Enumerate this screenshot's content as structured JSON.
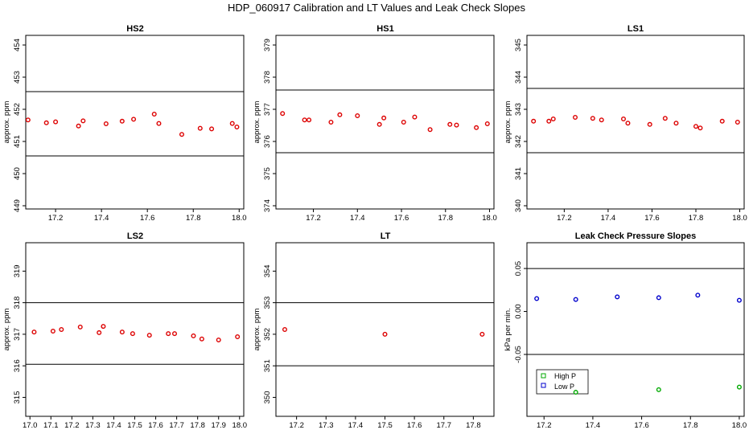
{
  "figure_title": "HDP_060917  Calibration and LT Values and Leak Check Slopes",
  "colors": {
    "points": "#dd0000",
    "high_p": "#00aa00",
    "low_p": "#0000cc",
    "line": "#000000"
  },
  "chart_data": [
    {
      "id": "hs2",
      "type": "scatter",
      "title": "HS2",
      "ylabel": "approx. ppm",
      "xlim": [
        17.07,
        18.02
      ],
      "ylim": [
        448.9,
        454.3
      ],
      "xticks": [
        17.2,
        17.4,
        17.6,
        17.8,
        18.0
      ],
      "xticklabels": [
        "17.2",
        "17.4",
        "17.6",
        "17.8",
        "18.0"
      ],
      "yticks": [
        449,
        450,
        451,
        452,
        453,
        454
      ],
      "yticklabels": [
        "449",
        "450",
        "451",
        "452",
        "453",
        "454"
      ],
      "hlines": [
        452.55,
        450.55
      ],
      "series": [
        {
          "name": "values",
          "color": "#dd0000",
          "x": [
            17.08,
            17.16,
            17.2,
            17.3,
            17.32,
            17.42,
            17.49,
            17.54,
            17.63,
            17.65,
            17.75,
            17.83,
            17.88,
            17.97,
            17.99
          ],
          "y": [
            451.67,
            451.58,
            451.61,
            451.48,
            451.64,
            451.55,
            451.63,
            451.69,
            451.85,
            451.56,
            451.22,
            451.41,
            451.39,
            451.56,
            451.45
          ]
        }
      ]
    },
    {
      "id": "hs1",
      "type": "scatter",
      "title": "HS1",
      "ylabel": "approx. ppm",
      "xlim": [
        17.03,
        18.02
      ],
      "ylim": [
        373.9,
        379.3
      ],
      "xticks": [
        17.2,
        17.4,
        17.6,
        17.8,
        18.0
      ],
      "xticklabels": [
        "17.2",
        "17.4",
        "17.6",
        "17.8",
        "18.0"
      ],
      "yticks": [
        374,
        375,
        376,
        377,
        378,
        379
      ],
      "yticklabels": [
        "374",
        "375",
        "376",
        "377",
        "378",
        "379"
      ],
      "hlines": [
        377.6,
        375.65
      ],
      "series": [
        {
          "name": "values",
          "color": "#dd0000",
          "x": [
            17.06,
            17.16,
            17.18,
            17.28,
            17.32,
            17.4,
            17.5,
            17.52,
            17.61,
            17.66,
            17.73,
            17.82,
            17.85,
            17.94,
            17.99
          ],
          "y": [
            376.87,
            376.67,
            376.67,
            376.6,
            376.83,
            376.8,
            376.53,
            376.73,
            376.6,
            376.76,
            376.37,
            376.53,
            376.51,
            376.43,
            376.55
          ]
        }
      ]
    },
    {
      "id": "ls1",
      "type": "scatter",
      "title": "LS1",
      "ylabel": "approx. ppm",
      "xlim": [
        17.03,
        18.02
      ],
      "ylim": [
        339.9,
        345.3
      ],
      "xticks": [
        17.2,
        17.4,
        17.6,
        17.8,
        18.0
      ],
      "xticklabels": [
        "17.2",
        "17.4",
        "17.6",
        "17.8",
        "18.0"
      ],
      "yticks": [
        340,
        341,
        342,
        343,
        344,
        345
      ],
      "yticklabels": [
        "340",
        "341",
        "342",
        "343",
        "344",
        "345"
      ],
      "hlines": [
        343.65,
        341.65
      ],
      "series": [
        {
          "name": "values",
          "color": "#dd0000",
          "x": [
            17.06,
            17.13,
            17.15,
            17.25,
            17.33,
            17.37,
            17.47,
            17.49,
            17.59,
            17.66,
            17.71,
            17.8,
            17.82,
            17.92,
            17.99
          ],
          "y": [
            342.63,
            342.63,
            342.7,
            342.75,
            342.72,
            342.67,
            342.7,
            342.57,
            342.53,
            342.72,
            342.57,
            342.47,
            342.42,
            342.63,
            342.6
          ]
        }
      ]
    },
    {
      "id": "ls2",
      "type": "scatter",
      "title": "LS2",
      "ylabel": "approx. ppm",
      "xlim": [
        16.98,
        18.02
      ],
      "ylim": [
        314.4,
        319.9
      ],
      "xticks": [
        17.0,
        17.1,
        17.2,
        17.3,
        17.4,
        17.5,
        17.6,
        17.7,
        17.8,
        17.9,
        18.0
      ],
      "xticklabels": [
        "17.0",
        "17.1",
        "17.2",
        "17.3",
        "17.4",
        "17.5",
        "17.6",
        "17.7",
        "17.8",
        "17.9",
        "18.0"
      ],
      "yticks": [
        315,
        316,
        317,
        318,
        319
      ],
      "yticklabels": [
        "315",
        "316",
        "317",
        "318",
        "319"
      ],
      "hlines": [
        318.0,
        316.05
      ],
      "series": [
        {
          "name": "values",
          "color": "#dd0000",
          "x": [
            17.02,
            17.11,
            17.15,
            17.24,
            17.33,
            17.35,
            17.44,
            17.49,
            17.57,
            17.66,
            17.69,
            17.78,
            17.82,
            17.9,
            17.99
          ],
          "y": [
            317.07,
            317.1,
            317.15,
            317.23,
            317.05,
            317.25,
            317.07,
            317.02,
            316.97,
            317.02,
            317.02,
            316.95,
            316.85,
            316.82,
            316.92
          ]
        }
      ]
    },
    {
      "id": "lt",
      "type": "scatter",
      "title": "LT",
      "ylabel": "approx. ppm",
      "xlim": [
        17.13,
        17.87
      ],
      "ylim": [
        349.4,
        354.9
      ],
      "xticks": [
        17.2,
        17.3,
        17.4,
        17.5,
        17.6,
        17.7,
        17.8
      ],
      "xticklabels": [
        "17.2",
        "17.3",
        "17.4",
        "17.5",
        "17.6",
        "17.7",
        "17.8"
      ],
      "yticks": [
        350,
        351,
        352,
        353,
        354
      ],
      "yticklabels": [
        "350",
        "351",
        "352",
        "353",
        "354"
      ],
      "hlines": [
        353.0,
        351.0
      ],
      "series": [
        {
          "name": "values",
          "color": "#dd0000",
          "x": [
            17.16,
            17.5,
            17.83
          ],
          "y": [
            352.15,
            352.0,
            352.0
          ]
        }
      ]
    },
    {
      "id": "leak",
      "type": "scatter",
      "title": "Leak Check Pressure Slopes",
      "ylabel": "kPa per min.",
      "xlim": [
        17.13,
        18.02
      ],
      "ylim": [
        -0.122,
        0.08
      ],
      "xticks": [
        17.2,
        17.4,
        17.6,
        17.8,
        18.0
      ],
      "xticklabels": [
        "17.2",
        "17.4",
        "17.6",
        "17.8",
        "18.0"
      ],
      "yticks": [
        -0.05,
        0.0,
        0.05
      ],
      "yticklabels": [
        "-0.05",
        "0.00",
        "0.05"
      ],
      "hlines": [
        0.05,
        -0.05
      ],
      "legend": {
        "position": "bottom-left",
        "entries": [
          {
            "label": "High P",
            "color": "#00aa00"
          },
          {
            "label": "Low P",
            "color": "#0000cc"
          }
        ]
      },
      "series": [
        {
          "name": "High P",
          "color": "#00aa00",
          "x": [
            17.33,
            17.67,
            18.0
          ],
          "y": [
            -0.094,
            -0.091,
            -0.088
          ]
        },
        {
          "name": "Low P",
          "color": "#0000cc",
          "x": [
            17.17,
            17.33,
            17.5,
            17.67,
            17.83,
            18.0
          ],
          "y": [
            0.015,
            0.014,
            0.017,
            0.016,
            0.019,
            0.013
          ]
        }
      ]
    }
  ]
}
